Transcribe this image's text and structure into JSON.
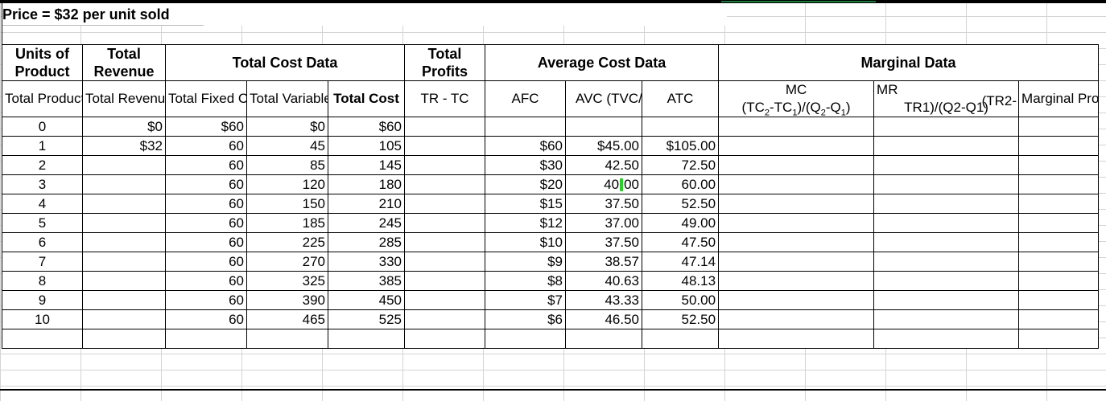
{
  "title": "Price = $32 per unit sold",
  "headers_top": {
    "units_of_product": "Units of Product",
    "total_revenue": "Total Revenue",
    "total_cost_data": "Total Cost Data",
    "total_profits": "Total Profits",
    "average_cost_data": "Average Cost Data",
    "marginal_data": "Marginal Data"
  },
  "headers_sub": {
    "total_product": "Total Product",
    "total_revenue": "Total Revenue",
    "total_fixed_cost": "Total Fixed Cost",
    "total_variable_cost": "Total Variable Cost",
    "total_cost": "Total Cost",
    "profits_formula": "TR - TC",
    "afc": "AFC",
    "avc": "AVC (TVC/# units)",
    "atc": "ATC",
    "mc_label": "MC",
    "mc_formula": "(TC2-TC1)/(Q2-Q1)",
    "mr_label": "MR",
    "mr_tr2": "(TR2-",
    "mr_formula_rest": "TR1)/(Q2-Q1)",
    "marginal_profits": "Marginal Profits"
  },
  "rows": [
    {
      "q": "0",
      "tr": "$0",
      "tfc": "$60",
      "tvc": "$0",
      "tc": "$60",
      "afc": "",
      "avc": "",
      "atc": ""
    },
    {
      "q": "1",
      "tr": "$32",
      "tfc": "60",
      "tvc": "45",
      "tc": "105",
      "afc": "$60",
      "avc": "$45.00",
      "atc": "$105.00"
    },
    {
      "q": "2",
      "tr": "",
      "tfc": "60",
      "tvc": "85",
      "tc": "145",
      "afc": "$30",
      "avc": "42.50",
      "atc": "72.50"
    },
    {
      "q": "3",
      "tr": "",
      "tfc": "60",
      "tvc": "120",
      "tc": "180",
      "afc": "$20",
      "avc": "40.00",
      "atc": "60.00"
    },
    {
      "q": "4",
      "tr": "",
      "tfc": "60",
      "tvc": "150",
      "tc": "210",
      "afc": "$15",
      "avc": "37.50",
      "atc": "52.50"
    },
    {
      "q": "5",
      "tr": "",
      "tfc": "60",
      "tvc": "185",
      "tc": "245",
      "afc": "$12",
      "avc": "37.00",
      "atc": "49.00"
    },
    {
      "q": "6",
      "tr": "",
      "tfc": "60",
      "tvc": "225",
      "tc": "285",
      "afc": "$10",
      "avc": "37.50",
      "atc": "47.50"
    },
    {
      "q": "7",
      "tr": "",
      "tfc": "60",
      "tvc": "270",
      "tc": "330",
      "afc": "$9",
      "avc": "38.57",
      "atc": "47.14"
    },
    {
      "q": "8",
      "tr": "",
      "tfc": "60",
      "tvc": "325",
      "tc": "385",
      "afc": "$8",
      "avc": "40.63",
      "atc": "48.13"
    },
    {
      "q": "9",
      "tr": "",
      "tfc": "60",
      "tvc": "390",
      "tc": "450",
      "afc": "$7",
      "avc": "43.33",
      "atc": "50.00"
    },
    {
      "q": "10",
      "tr": "",
      "tfc": "60",
      "tvc": "465",
      "tc": "525",
      "afc": "$6",
      "avc": "46.50",
      "atc": "52.50"
    }
  ],
  "colors": {
    "selection_marker": "#2ecc2e",
    "header_accent": "#1a7a3c"
  }
}
